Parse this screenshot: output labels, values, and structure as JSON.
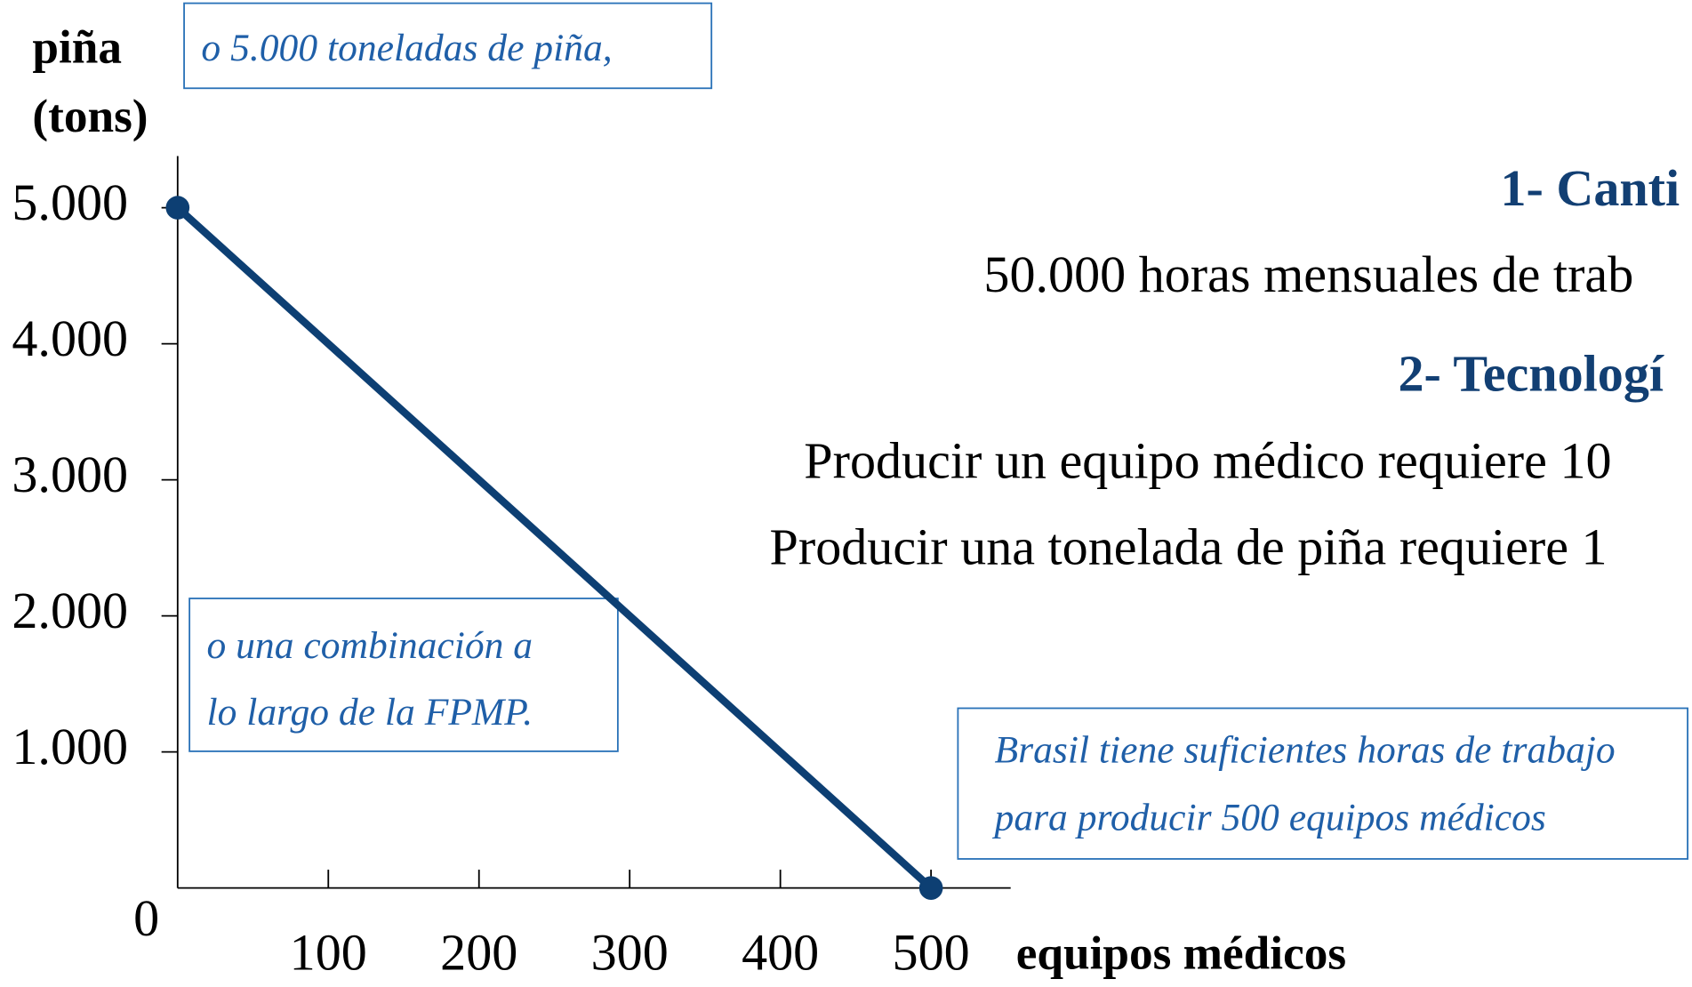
{
  "chart_data": {
    "type": "line",
    "x_label": "equipos médicos",
    "y_label": [
      "piña",
      "(tons)"
    ],
    "x": [
      0,
      500
    ],
    "series": [
      {
        "color": "#0d3f73",
        "values": [
          5000,
          0
        ]
      }
    ],
    "xlim": [
      0,
      500
    ],
    "ylim": [
      0,
      5000
    ],
    "xticks": [
      100,
      200,
      300,
      400,
      500
    ],
    "yticks": [
      0,
      {
        "value": 1000,
        "label": "1.000"
      },
      {
        "value": 2000,
        "label": "2.000"
      },
      {
        "value": 3000,
        "label": "3.000"
      },
      {
        "value": 4000,
        "label": "4.000"
      },
      {
        "value": 5000,
        "label": "5.000"
      }
    ],
    "annotations": [
      {
        "lines": [
          "o 5.000 toneladas de piña,"
        ]
      },
      {
        "lines": [
          "o una combinación a",
          "lo largo de la FPMP."
        ]
      },
      {
        "lines": [
          "Brasil tiene suficientes horas de trabajo",
          "para producir 500 equipos médicos"
        ]
      }
    ],
    "side_text": [
      {
        "style": "head",
        "text": "1- Canti"
      },
      {
        "style": "body",
        "text": "50.000 horas mensuales de trab"
      },
      {
        "style": "head",
        "text": "2- Tecnologí"
      },
      {
        "style": "body",
        "text": "Producir un equipo médico requiere 10"
      },
      {
        "style": "body",
        "text": "Producir una tonelada de piña requiere 1"
      }
    ]
  }
}
